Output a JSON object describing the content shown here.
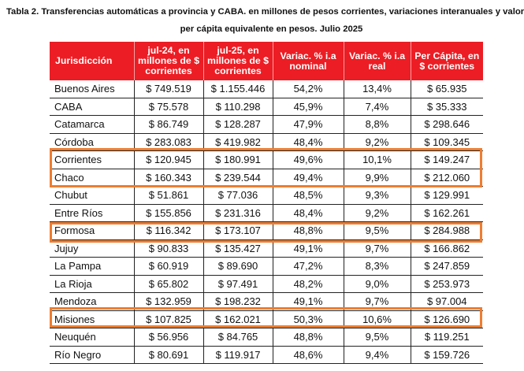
{
  "title": {
    "line1": "Tabla 2. Transferencias automáticas a provincia y CABA. en millones de pesos corrientes, variaciones interanuales y valor",
    "line2": "per cápita equivalente en pesos. Julio 2025"
  },
  "table": {
    "headers": [
      "Jurisdicción",
      "jul-24, en millones de $ corrientes",
      "jul-25, en millones de $ corrientes",
      "Variac. % i.a nominal",
      "Variac. % i.a real",
      "Per Cápita, en $ corrientes"
    ],
    "rows": [
      [
        "Buenos Aires",
        "$ 749.519",
        "$ 1.155.446",
        "54,2%",
        "13,4%",
        "$ 65.935"
      ],
      [
        "CABA",
        "$ 75.578",
        "$ 110.298",
        "45,9%",
        "7,4%",
        "$ 35.333"
      ],
      [
        "Catamarca",
        "$ 86.749",
        "$ 128.287",
        "47,9%",
        "8,8%",
        "$ 298.646"
      ],
      [
        "Córdoba",
        "$ 283.083",
        "$ 419.982",
        "48,4%",
        "9,2%",
        "$ 109.345"
      ],
      [
        "Corrientes",
        "$ 120.945",
        "$ 180.991",
        "49,6%",
        "10,1%",
        "$ 149.247"
      ],
      [
        "Chaco",
        "$ 160.343",
        "$ 239.544",
        "49,4%",
        "9,9%",
        "$ 212.060"
      ],
      [
        "Chubut",
        "$ 51.861",
        "$ 77.036",
        "48,5%",
        "9,3%",
        "$ 129.991"
      ],
      [
        "Entre Ríos",
        "$ 155.856",
        "$ 231.316",
        "48,4%",
        "9,2%",
        "$ 162.261"
      ],
      [
        "Formosa",
        "$ 116.342",
        "$ 173.107",
        "48,8%",
        "9,5%",
        "$ 284.988"
      ],
      [
        "Jujuy",
        "$ 90.833",
        "$ 135.427",
        "49,1%",
        "9,7%",
        "$ 166.862"
      ],
      [
        "La Pampa",
        "$ 60.919",
        "$ 89.690",
        "47,2%",
        "8,3%",
        "$ 247.859"
      ],
      [
        "La Rioja",
        "$ 65.802",
        "$ 97.491",
        "48,2%",
        "9,0%",
        "$ 253.973"
      ],
      [
        "Mendoza",
        "$ 132.959",
        "$ 198.232",
        "49,1%",
        "9,7%",
        "$ 97.004"
      ],
      [
        "Misiones",
        "$ 107.825",
        "$ 162.021",
        "50,3%",
        "10,6%",
        "$ 126.690"
      ],
      [
        "Neuquén",
        "$ 56.956",
        "$ 84.765",
        "48,8%",
        "9,5%",
        "$ 119.251"
      ],
      [
        "Río Negro",
        "$ 80.691",
        "$ 119.917",
        "48,6%",
        "9,4%",
        "$ 159.726"
      ]
    ]
  },
  "colors": {
    "header_bg": "#ec1d24",
    "highlight": "#ed7d31"
  }
}
